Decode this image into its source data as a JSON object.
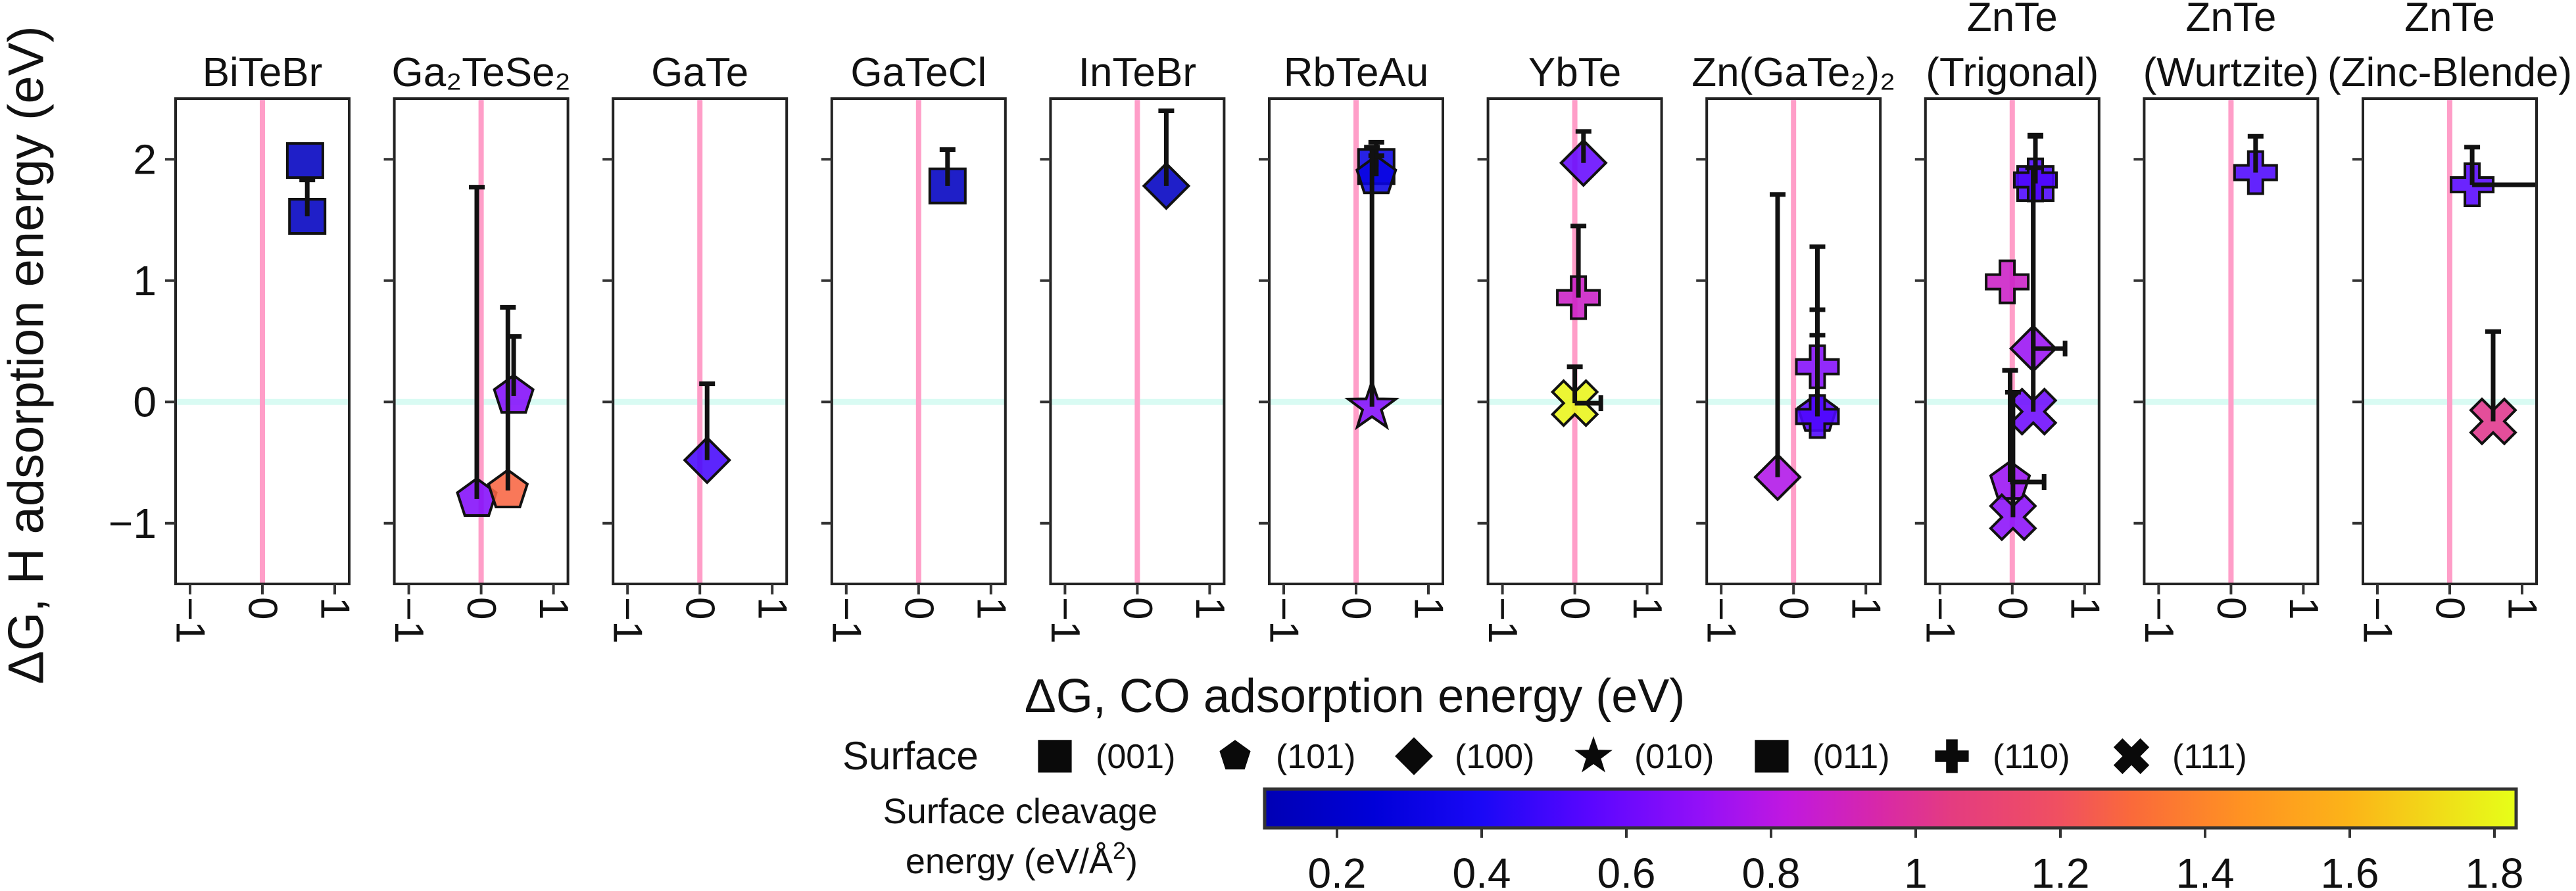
{
  "chart_data": {
    "type": "scatter",
    "xlabel": "ΔG, CO adsorption energy (eV)",
    "ylabel": "ΔG, H adsorption energy (eV)",
    "xlim": [
      -1.2,
      1.2
    ],
    "ylim": [
      -1.5,
      2.5
    ],
    "x_ticks": [
      {
        "v": -1,
        "label": "−1"
      },
      {
        "v": 0,
        "label": "0"
      },
      {
        "v": 1,
        "label": "1"
      }
    ],
    "y_ticks": [
      {
        "v": 2,
        "label": "2"
      },
      {
        "v": 1,
        "label": "1"
      },
      {
        "v": 0,
        "label": "0"
      },
      {
        "v": -1,
        "label": "−1"
      }
    ],
    "reference_lines": {
      "x": 0,
      "y": 0,
      "x_color": "#ff9ec8",
      "y_color": "#d9fbf3"
    },
    "panels": [
      {
        "title": [
          "BiTeBr"
        ],
        "points": [
          {
            "surface": "(001)",
            "x": 0.59,
            "y": 1.99,
            "cleavage": 0.15
          },
          {
            "surface": "(001)",
            "x": 0.62,
            "y": 1.53,
            "cleavage": 0.15,
            "y_err_to": 1.83
          }
        ]
      },
      {
        "title": [
          "Ga₂TeSe₂"
        ],
        "points": [
          {
            "surface": "(101)",
            "x": -0.06,
            "y": -0.8,
            "cleavage": 0.66,
            "y_err_to": 1.77
          },
          {
            "surface": "(101)",
            "x": 0.37,
            "y": -0.73,
            "cleavage": 1.28,
            "y_err_to": 0.78
          },
          {
            "surface": "(101)",
            "x": 0.45,
            "y": 0.05,
            "cleavage": 0.66,
            "y_err_to": 0.54
          }
        ]
      },
      {
        "title": [
          "GaTe"
        ],
        "points": [
          {
            "surface": "(100)",
            "x": 0.1,
            "y": -0.48,
            "cleavage": 0.5,
            "y_err_to": 0.15
          }
        ]
      },
      {
        "title": [
          "GaTeCl"
        ],
        "points": [
          {
            "surface": "(001)",
            "x": 0.4,
            "y": 1.78,
            "cleavage": 0.15,
            "y_err_to": 2.08
          }
        ]
      },
      {
        "title": [
          "InTeBr"
        ],
        "points": [
          {
            "surface": "(100)",
            "x": 0.4,
            "y": 1.78,
            "cleavage": 0.16,
            "y_err_to": 2.4
          }
        ]
      },
      {
        "title": [
          "RbTeAu"
        ],
        "points": [
          {
            "surface": "(001)",
            "x": 0.28,
            "y": 1.94,
            "cleavage": 0.3,
            "y_err_to": 2.14
          },
          {
            "surface": "(101)",
            "x": 0.28,
            "y": 1.86,
            "cleavage": 0.3,
            "y_err_to": 2.03
          },
          {
            "surface": "(010)",
            "x": 0.22,
            "y": -0.04,
            "cleavage": 0.66,
            "y_err_to": 2.1
          }
        ]
      },
      {
        "title": [
          "YbTe"
        ],
        "points": [
          {
            "surface": "(100)",
            "x": 0.12,
            "y": 1.97,
            "cleavage": 0.58,
            "y_err_to": 2.23
          },
          {
            "surface": "(110)",
            "x": 0.05,
            "y": 0.86,
            "cleavage": 0.88,
            "y_err_to": 1.45
          },
          {
            "surface": "(111)",
            "x": 0.0,
            "y": -0.01,
            "cleavage": 1.8,
            "y_err_to": 0.29,
            "x_err_to": 0.36
          }
        ]
      },
      {
        "title": [
          "Zn(GaTe₂)₂"
        ],
        "points": [
          {
            "surface": "(100)",
            "x": -0.22,
            "y": -0.62,
            "cleavage": 0.78,
            "y_err_to": 1.71
          },
          {
            "surface": "(101)",
            "x": 0.33,
            "y": -0.1,
            "cleavage": 0.55,
            "y_err_to": 0.55
          },
          {
            "surface": "(110)",
            "x": 0.33,
            "y": 0.29,
            "cleavage": 0.66,
            "y_err_to": 1.28
          },
          {
            "surface": "(110)",
            "x": 0.33,
            "y": -0.12,
            "cleavage": 0.52,
            "y_err_to": 0.76
          }
        ]
      },
      {
        "title": [
          "ZnTe",
          "(Trigonal)"
        ],
        "points": [
          {
            "surface": "(011)",
            "x": 0.32,
            "y": 1.8,
            "cleavage": 0.52,
            "y_err_to": 2.2
          },
          {
            "surface": "(110)",
            "x": 0.32,
            "y": 1.83,
            "cleavage": 0.52,
            "y_err_to": 2.19
          },
          {
            "surface": "(110)",
            "x": -0.07,
            "y": 0.99,
            "cleavage": 0.88
          },
          {
            "surface": "(100)",
            "x": 0.29,
            "y": 0.44,
            "cleavage": 0.72,
            "y_err_to": 1.93,
            "x_err_to": 0.73
          },
          {
            "surface": "(111)",
            "x": 0.29,
            "y": -0.08,
            "cleavage": 0.6,
            "y_err_to": 1.93
          },
          {
            "surface": "(101)",
            "x": -0.03,
            "y": -0.66,
            "cleavage": 0.72,
            "y_err_to": 0.26,
            "x_err_to": 0.44
          },
          {
            "surface": "(111)",
            "x": 0.01,
            "y": -0.95,
            "cleavage": 0.68,
            "y_err_to": 0.08
          }
        ]
      },
      {
        "title": [
          "ZnTe",
          "(Wurtzite)"
        ],
        "points": [
          {
            "surface": "(110)",
            "x": 0.34,
            "y": 1.89,
            "cleavage": 0.52,
            "y_err_to": 2.19
          }
        ]
      },
      {
        "title": [
          "ZnTe",
          "(Zinc-Blende)"
        ],
        "points": [
          {
            "surface": "(110)",
            "x": 0.31,
            "y": 1.79,
            "cleavage": 0.54,
            "y_err_to": 2.1,
            "x_err_to": 1.5
          },
          {
            "surface": "(111)",
            "x": 0.6,
            "y": -0.16,
            "cleavage": 1.02,
            "y_err_to": 0.58
          }
        ]
      }
    ],
    "legend": {
      "title": "Surface",
      "items": [
        {
          "surface": "(001)",
          "marker": "square"
        },
        {
          "surface": "(101)",
          "marker": "pentagon"
        },
        {
          "surface": "(100)",
          "marker": "diamond"
        },
        {
          "surface": "(010)",
          "marker": "star"
        },
        {
          "surface": "(011)",
          "marker": "square"
        },
        {
          "surface": "(110)",
          "marker": "plus"
        },
        {
          "surface": "(111)",
          "marker": "x"
        }
      ]
    },
    "colorbar": {
      "label_line1": "Surface cleavage",
      "label_line2": "energy (eV/Å",
      "label_sup": "2",
      "label_end": ")",
      "range": [
        0.1,
        1.83
      ],
      "ticks": [
        {
          "v": 0.2,
          "label": "0.2"
        },
        {
          "v": 0.4,
          "label": "0.4"
        },
        {
          "v": 0.6,
          "label": "0.6"
        },
        {
          "v": 0.8,
          "label": "0.8"
        },
        {
          "v": 1.0,
          "label": "1"
        },
        {
          "v": 1.2,
          "label": "1.2"
        },
        {
          "v": 1.4,
          "label": "1.4"
        },
        {
          "v": 1.6,
          "label": "1.6"
        },
        {
          "v": 1.8,
          "label": "1.8"
        }
      ],
      "colormap": [
        {
          "v": 0.1,
          "c": "#0000b4"
        },
        {
          "v": 0.25,
          "c": "#0000d8"
        },
        {
          "v": 0.4,
          "c": "#1a08f6"
        },
        {
          "v": 0.55,
          "c": "#5a06ff"
        },
        {
          "v": 0.7,
          "c": "#9210f8"
        },
        {
          "v": 0.82,
          "c": "#c018e0"
        },
        {
          "v": 0.95,
          "c": "#d828a8"
        },
        {
          "v": 1.05,
          "c": "#e43c80"
        },
        {
          "v": 1.2,
          "c": "#f05060"
        },
        {
          "v": 1.3,
          "c": "#fa6a3a"
        },
        {
          "v": 1.45,
          "c": "#ff9222"
        },
        {
          "v": 1.6,
          "c": "#fcb418"
        },
        {
          "v": 1.83,
          "c": "#e6ff18"
        }
      ]
    }
  }
}
